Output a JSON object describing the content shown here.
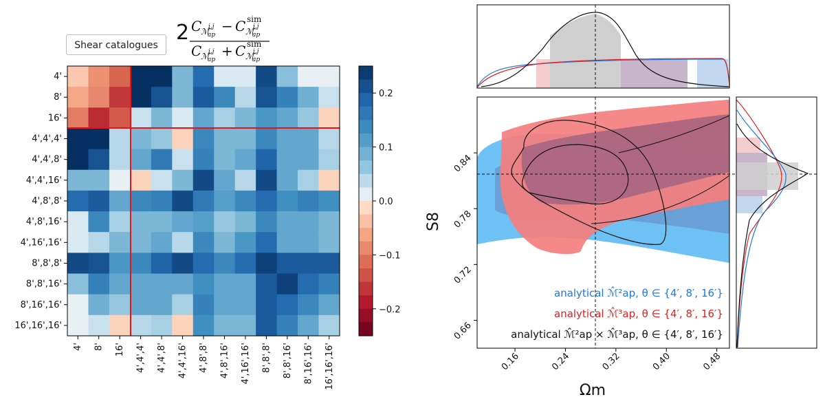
{
  "chart_data": [
    {
      "type": "heatmap",
      "title_formula": "2 (C_{M_ap^{i,j}} - C^{sim}_{M_ap^{i,j}}) / (C_{M_ap^{i,j}} + C^{sim}_{M_ap^{i,j}})",
      "legend_label": "Shear catalogues",
      "row_labels": [
        "4'",
        "8'",
        "16'",
        "4',4',4'",
        "4',4',8'",
        "4',4',16'",
        "4',8',8'",
        "4',8',16'",
        "4',16',16'",
        "8',8',8'",
        "8',8',16'",
        "8',16',16'",
        "16',16',16'"
      ],
      "col_labels": [
        "4'",
        "8'",
        "16'",
        "4',4',4'",
        "4',4',8'",
        "4',4',16'",
        "4',8',8'",
        "4',8',16'",
        "4',16',16'",
        "8',8',8'",
        "8',8',16'",
        "8',16',16'",
        "16',16',16'"
      ],
      "colorbar_range": [
        -0.25,
        0.25
      ],
      "colorbar_ticks": [
        0.2,
        0.1,
        0.0,
        -0.1,
        -0.2
      ],
      "colorbar_tick_labels": [
        "0.2",
        "0.1",
        "0.0",
        "−0.1",
        "−0.2"
      ],
      "values": [
        [
          -0.03,
          -0.08,
          -0.12,
          0.25,
          0.25,
          0.08,
          0.18,
          0.02,
          0.02,
          0.22,
          0.07,
          0.01,
          0.01
        ],
        [
          -0.06,
          -0.09,
          -0.16,
          0.25,
          0.21,
          0.08,
          0.2,
          0.14,
          0.04,
          0.21,
          0.15,
          0.09,
          0.03
        ],
        [
          -0.1,
          -0.17,
          -0.13,
          0.03,
          0.08,
          0.02,
          0.1,
          0.05,
          0.08,
          0.12,
          0.1,
          0.06,
          -0.02
        ],
        [
          0.25,
          0.25,
          0.04,
          0.08,
          0.06,
          -0.02,
          0.14,
          0.08,
          0.08,
          0.14,
          0.1,
          0.1,
          0.04
        ],
        [
          0.25,
          0.21,
          0.04,
          0.1,
          0.16,
          0.03,
          0.15,
          0.08,
          0.1,
          0.19,
          0.1,
          0.1,
          0.05
        ],
        [
          0.08,
          0.08,
          0.01,
          -0.02,
          0.03,
          0.08,
          0.22,
          0.1,
          0.04,
          0.22,
          0.1,
          0.05,
          -0.02
        ],
        [
          0.18,
          0.2,
          0.1,
          0.14,
          0.15,
          0.22,
          0.16,
          0.11,
          0.14,
          0.18,
          0.13,
          0.15,
          0.13
        ],
        [
          0.02,
          0.14,
          0.05,
          0.08,
          0.08,
          0.1,
          0.11,
          0.06,
          0.08,
          0.14,
          0.1,
          0.1,
          0.08
        ],
        [
          0.02,
          0.04,
          0.08,
          0.08,
          0.1,
          0.04,
          0.14,
          0.08,
          0.12,
          0.18,
          0.1,
          0.1,
          0.08
        ],
        [
          0.22,
          0.21,
          0.12,
          0.14,
          0.19,
          0.22,
          0.18,
          0.14,
          0.18,
          0.23,
          0.2,
          0.2,
          0.2
        ],
        [
          0.07,
          0.15,
          0.1,
          0.1,
          0.1,
          0.1,
          0.13,
          0.1,
          0.1,
          0.2,
          0.23,
          0.18,
          0.15
        ],
        [
          0.01,
          0.09,
          0.06,
          0.1,
          0.1,
          0.05,
          0.15,
          0.1,
          0.1,
          0.2,
          0.18,
          0.14,
          0.1
        ],
        [
          0.01,
          0.03,
          -0.02,
          0.04,
          0.05,
          -0.02,
          0.13,
          0.08,
          0.08,
          0.2,
          0.15,
          0.1,
          0.05
        ]
      ],
      "block_separators_after_index": [
        2
      ]
    },
    {
      "type": "corner",
      "xlabel": "Ωm",
      "ylabel": "S8",
      "xlim": [
        0.1,
        0.5
      ],
      "ylim": [
        0.63,
        0.9
      ],
      "x_ticks": [
        0.16,
        0.24,
        0.32,
        0.4,
        0.48
      ],
      "x_tick_labels": [
        "0.16",
        "0.24",
        "0.32",
        "0.40",
        "0.48"
      ],
      "y_ticks": [
        0.66,
        0.72,
        0.78,
        0.84
      ],
      "y_tick_labels": [
        "0.66",
        "0.72",
        "0.78",
        "0.84"
      ],
      "fiducial": {
        "omega_m": 0.29,
        "s8": 0.813
      },
      "series": [
        {
          "name": "analytical M_ap^2, θ∈{4′,8′,16′}",
          "legend_text": "analytical ℳ̂²ap, θ ∈ {4′, 8′, 16′}",
          "color": "#1f77e0",
          "marginal_omega_m_interval": [
            0.24,
            0.44
          ],
          "marginal_s8_interval": [
            0.77,
            0.845
          ]
        },
        {
          "name": "analytical M_ap^3, θ∈{4′,8′,16′}",
          "legend_text": "analytical ℳ̂³ap, θ ∈ {4′, 8′, 16′}",
          "color": "#e02020",
          "marginal_omega_m_interval": [
            0.19,
            0.44
          ],
          "marginal_s8_interval": [
            0.78,
            0.848
          ]
        },
        {
          "name": "analytical M_ap^2 × M_ap^3, θ∈{4′,8′,16′}",
          "legend_text": "analytical ℳ̂²ap × ℳ̂³ap, θ ∈ {4′, 8′, 16′}",
          "color": "#111111",
          "marginal_omega_m_interval": [
            0.22,
            0.33
          ],
          "marginal_s8_interval": [
            0.79,
            0.83
          ]
        }
      ]
    }
  ],
  "colors": {
    "red_line": "#e3141a",
    "blue_fill": "#6dc1f4",
    "red_fill": "#f47e7e",
    "purple_fill": "#9a6c8a"
  }
}
